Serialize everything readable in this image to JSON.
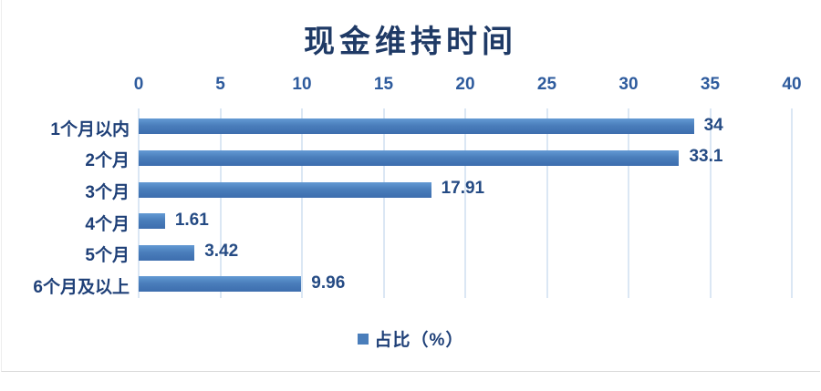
{
  "chart": {
    "title": "现金维持时间",
    "legend_label": "占比（%）",
    "legend_marker_color": "#4a7ebb",
    "bar_color": "#4a7ebb",
    "gridline_color": "#dbe7f4",
    "title_color": "#1f3a66",
    "tick_color": "#2e5b9d",
    "label_color": "#1f4078"
  },
  "chart_data": {
    "type": "bar",
    "orientation": "horizontal",
    "title": "现金维持时间",
    "categories": [
      "1个月以内",
      "2个月",
      "3个月",
      "4个月",
      "5个月",
      "6个月及以上"
    ],
    "values": [
      34,
      33.1,
      17.91,
      1.61,
      3.42,
      9.96
    ],
    "value_labels": [
      "34",
      "33.1",
      "17.91",
      "1.61",
      "3.42",
      "9.96"
    ],
    "series_name": "占比（%）",
    "x_ticks": [
      0,
      5,
      10,
      15,
      20,
      25,
      30,
      35,
      40
    ],
    "xlim": [
      0,
      40
    ],
    "xlabel": "",
    "ylabel": "",
    "grid": true,
    "axis_position": "top",
    "legend_position": "bottom"
  }
}
